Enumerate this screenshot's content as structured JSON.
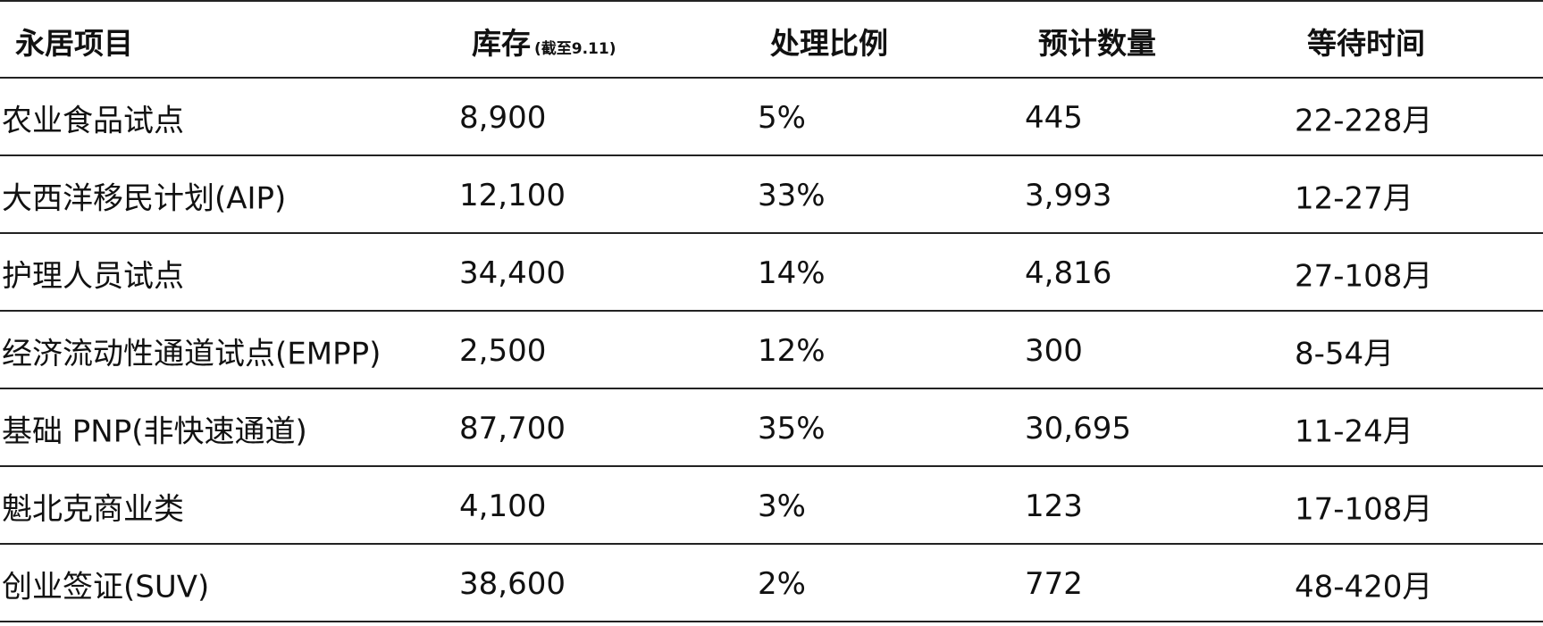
{
  "table": {
    "header": [
      "永居项目",
      "库存",
      "处理比例",
      "预计数量",
      "等待时间"
    ],
    "header_note": "(截至9.11)",
    "rows": [
      [
        "农业食品试点",
        "8,900",
        "5%",
        "445",
        "22-228月"
      ],
      [
        "大西洋移民计划(AIP)",
        "12,100",
        "33%",
        "3,993",
        "12-27月"
      ],
      [
        "护理人员试点",
        "34,400",
        "14%",
        "4,816",
        "27-108月"
      ],
      [
        "经济流动性通道试点(EMPP)",
        "2,500",
        "12%",
        "300",
        "8-54月"
      ],
      [
        "基础 PNP(非快速通道)",
        "87,700",
        "35%",
        "30,695",
        "11-24月"
      ],
      [
        "魁北克商业类",
        "4,100",
        "3%",
        "123",
        "17-108月"
      ],
      [
        "创业签证(SUV)",
        "38,600",
        "2%",
        "772",
        "48-420月"
      ]
    ]
  }
}
